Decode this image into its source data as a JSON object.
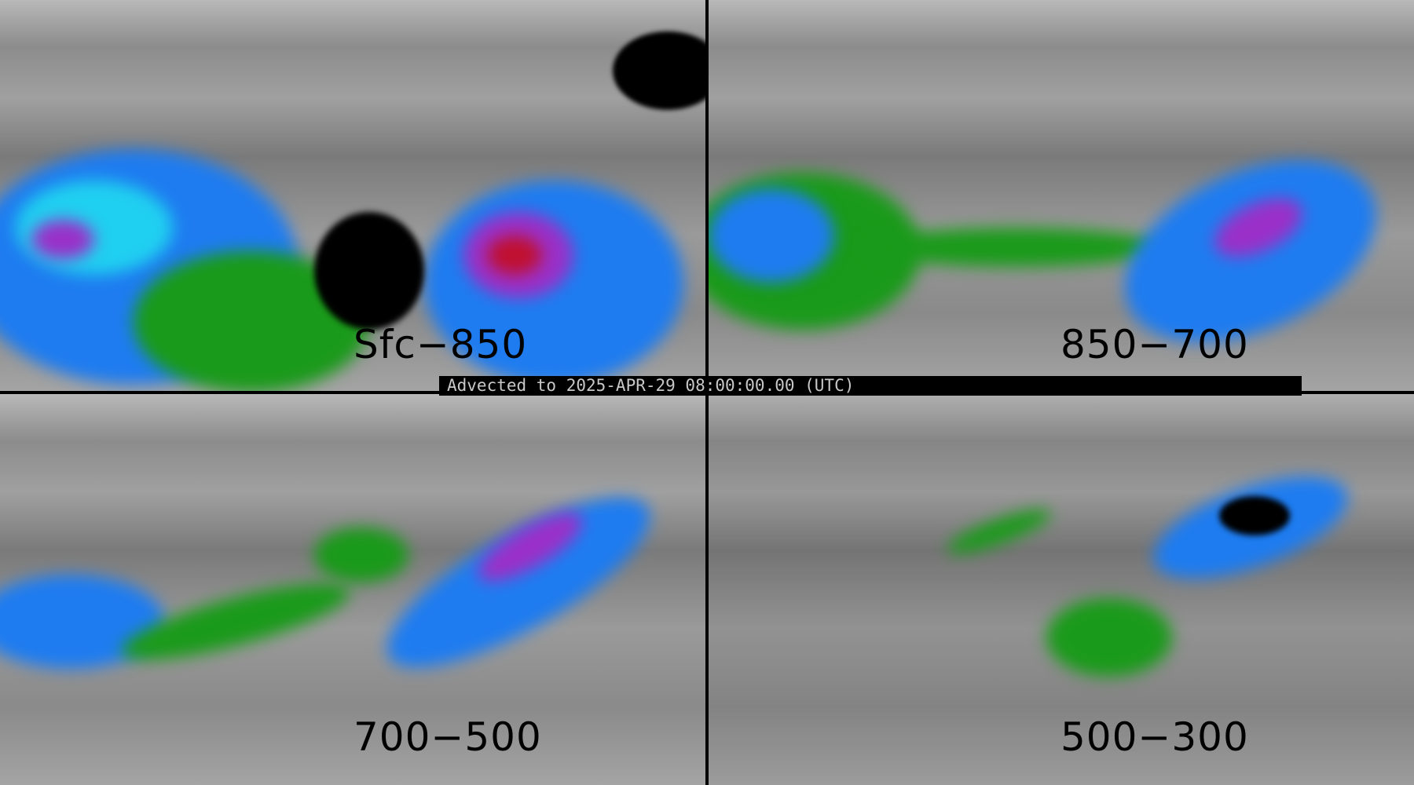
{
  "banner": {
    "text": "Advected to 2025-APR-29 08:00:00.00 (UTC)"
  },
  "panels": [
    {
      "label": "Sfc−850"
    },
    {
      "label": "850−700"
    },
    {
      "label": "700−500"
    },
    {
      "label": "500−300"
    }
  ],
  "colors": {
    "background": "#000000",
    "low": "#909090",
    "green": "#1a9a1a",
    "blue": "#1e7cf0",
    "cyan": "#20d0f0",
    "purple": "#9a30c8",
    "red": "#c01030",
    "black": "#000000"
  },
  "colormap": [
    "gray",
    "green",
    "blue",
    "cyan",
    "purple",
    "red",
    "black"
  ]
}
